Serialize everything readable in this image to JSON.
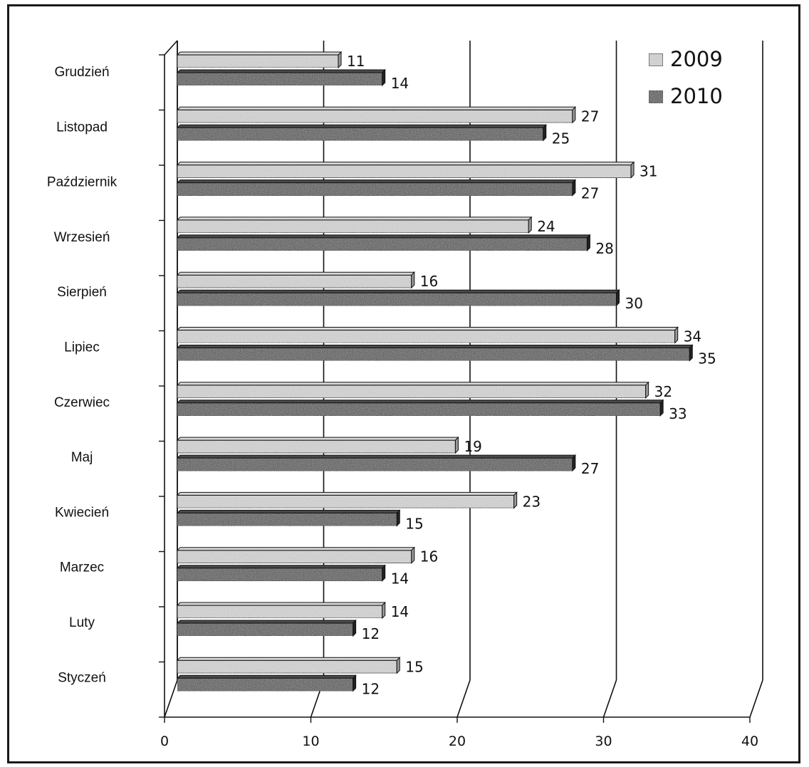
{
  "chart_data": {
    "type": "bar",
    "orientation": "horizontal",
    "title": "",
    "xlabel": "",
    "ylabel": "",
    "categories": [
      "Grudzień",
      "Listopad",
      "Październik",
      "Wrzesień",
      "Sierpień",
      "Lipiec",
      "Czerwiec",
      "Maj",
      "Kwiecień",
      "Marzec",
      "Luty",
      "Styczeń"
    ],
    "series": [
      {
        "name": "2009",
        "values": [
          11,
          27,
          31,
          24,
          16,
          34,
          32,
          19,
          23,
          16,
          14,
          15
        ],
        "color": "#d8d8d8"
      },
      {
        "name": "2010",
        "values": [
          14,
          25,
          27,
          28,
          30,
          35,
          33,
          27,
          15,
          14,
          12,
          12
        ],
        "color": "#4a4a4a"
      }
    ],
    "xlim": [
      0,
      40
    ],
    "xticks": [
      0,
      10,
      20,
      30,
      40
    ],
    "grid": true,
    "legend_position": "top-right",
    "style": "3d-bar",
    "pattern": "grainy"
  }
}
